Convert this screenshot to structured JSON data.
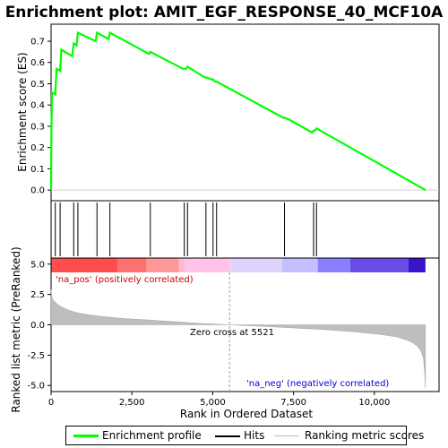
{
  "chart_data": {
    "type": "line",
    "title": "Enrichment plot: AMIT_EGF_RESPONSE_40_MCF10A",
    "colors": {
      "enrichment": "#00ff00",
      "hits": "#000000",
      "ranking_fill": "#bebebe",
      "pos_label": "#cc0000",
      "neg_label": "#0000cc",
      "zero_cross_line": "#a0a0a0"
    },
    "top_panel": {
      "ylabel": "Enrichment score (ES)",
      "ylim": [
        -0.05,
        0.78
      ],
      "yticks": [
        "0.0",
        "0.1",
        "0.2",
        "0.3",
        "0.4",
        "0.5",
        "0.6",
        "0.7"
      ],
      "yticks_values": [
        0.0,
        0.1,
        0.2,
        0.3,
        0.4,
        0.5,
        0.6,
        0.7
      ],
      "series": [
        {
          "name": "Enrichment profile",
          "x": [
            0,
            10,
            30,
            130,
            170,
            280,
            320,
            650,
            700,
            790,
            830,
            1380,
            1420,
            1780,
            1820,
            3030,
            3070,
            4080,
            4120,
            4180,
            4220,
            4750,
            4790,
            4970,
            5010,
            5080,
            5120,
            7180,
            7220,
            7380,
            8080,
            8120,
            8170,
            8210,
            11580
          ],
          "y": [
            0.0,
            0.28,
            0.46,
            0.45,
            0.57,
            0.56,
            0.66,
            0.63,
            0.69,
            0.68,
            0.74,
            0.7,
            0.74,
            0.71,
            0.74,
            0.64,
            0.65,
            0.57,
            0.57,
            0.57,
            0.58,
            0.53,
            0.53,
            0.52,
            0.52,
            0.51,
            0.51,
            0.34,
            0.34,
            0.33,
            0.27,
            0.28,
            0.28,
            0.29,
            0.0
          ]
        }
      ]
    },
    "hits_panel": {
      "hits": [
        0,
        130,
        280,
        700,
        830,
        1420,
        1820,
        3070,
        4120,
        4220,
        4790,
        5010,
        5120,
        7220,
        8120,
        8210
      ]
    },
    "color_bar": {
      "segments": [
        {
          "start": 0,
          "end": 2050,
          "color": "#ff4d4d"
        },
        {
          "start": 2050,
          "end": 2950,
          "color": "#ff7070"
        },
        {
          "start": 2950,
          "end": 3950,
          "color": "#ff9999"
        },
        {
          "start": 3950,
          "end": 4150,
          "color": "#ffb8d0"
        },
        {
          "start": 4150,
          "end": 5550,
          "color": "#ffc4e8"
        },
        {
          "start": 5550,
          "end": 7150,
          "color": "#e0d4ff"
        },
        {
          "start": 7150,
          "end": 8250,
          "color": "#c4bfff"
        },
        {
          "start": 8250,
          "end": 9250,
          "color": "#8a80ff"
        },
        {
          "start": 9250,
          "end": 11050,
          "color": "#6a4ce6"
        },
        {
          "start": 11050,
          "end": 11580,
          "color": "#3a12cc"
        }
      ]
    },
    "ranking_panel": {
      "ylabel": "Ranked list metric (PreRanked)",
      "ylim": [
        -5.5,
        5.5
      ],
      "yticks": [
        "5.0",
        "2.5",
        "0.0",
        "-2.5",
        "-5.0"
      ],
      "yticks_values": [
        5.0,
        2.5,
        0.0,
        -2.5,
        -5.0
      ],
      "metric_x": [
        0,
        30,
        80,
        150,
        300,
        500,
        800,
        1200,
        1700,
        2300,
        3000,
        3800,
        4600,
        5521,
        6500,
        7500,
        8500,
        9500,
        10200,
        10700,
        11000,
        11200,
        11350,
        11450,
        11520,
        11560,
        11580
      ],
      "metric_y": [
        2.9,
        2.2,
        2.0,
        1.8,
        1.5,
        1.25,
        1.0,
        0.8,
        0.65,
        0.5,
        0.4,
        0.25,
        0.12,
        0.0,
        -0.12,
        -0.25,
        -0.4,
        -0.6,
        -0.8,
        -1.0,
        -1.25,
        -1.5,
        -1.8,
        -2.2,
        -2.8,
        -4.0,
        -5.2
      ],
      "zero_cross_label": "Zero cross at 5521",
      "zero_cross_value": 5521,
      "pos_label": "'na_pos' (positively correlated)",
      "neg_label": "'na_neg' (negatively correlated)"
    },
    "xaxis": {
      "xlabel": "Rank in Ordered Dataset",
      "xlim": [
        0,
        12000
      ],
      "xticks": [
        "0",
        "2,500",
        "5,000",
        "7,500",
        "10,000"
      ],
      "xticks_values": [
        0,
        2500,
        5000,
        7500,
        10000
      ],
      "n": 11580
    },
    "legend": {
      "items": [
        "Enrichment profile",
        "Hits",
        "Ranking metric scores"
      ]
    }
  }
}
